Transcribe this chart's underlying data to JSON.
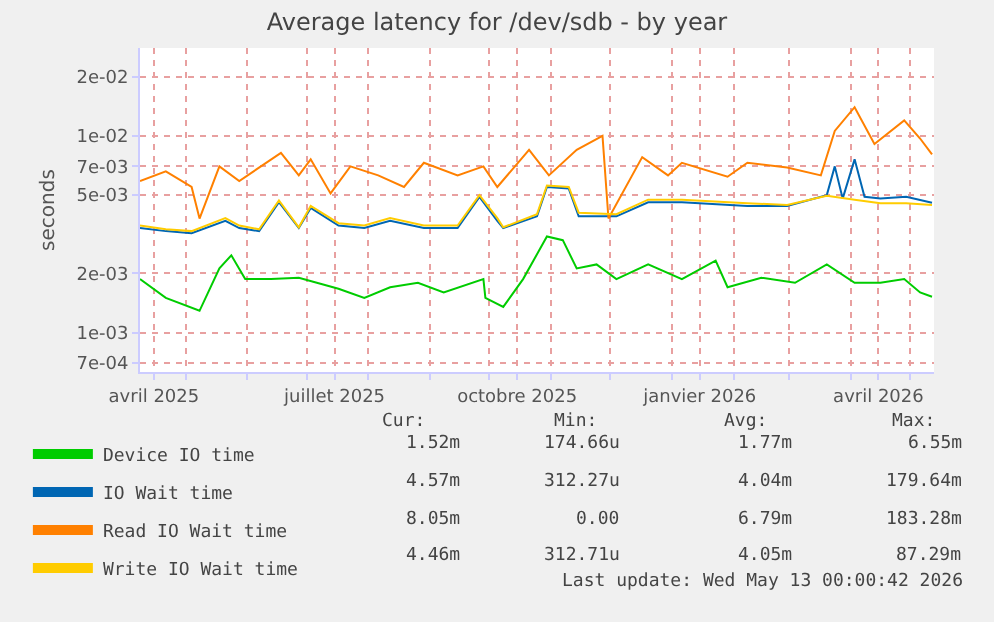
{
  "chart_data": {
    "type": "line",
    "title": "Average latency for /dev/sdb - by year",
    "ylabel": "seconds",
    "log": "y",
    "grid": true,
    "legend": "bottom left",
    "line_style": "solid",
    "marker": "none",
    "xlim": [
      "2025-04-08",
      "2026-05-13"
    ],
    "xticks": [
      {
        "value": "2025-04-15",
        "label": "avril 2025"
      },
      {
        "value": "2025-07-15",
        "label": "juillet 2025"
      },
      {
        "value": "2025-10-15",
        "label": "octobre 2025"
      },
      {
        "value": "2026-01-15",
        "label": "janvier 2026"
      },
      {
        "value": "2026-04-15",
        "label": "avril 2026"
      },
      {
        "value": "2025-05-01",
        "label": null
      },
      {
        "value": "2025-06-01",
        "label": null
      },
      {
        "value": "2025-07-01",
        "label": null
      },
      {
        "value": "2025-08-01",
        "label": null
      },
      {
        "value": "2025-09-01",
        "label": null
      },
      {
        "value": "2025-10-01",
        "label": null
      },
      {
        "value": "2025-11-01",
        "label": null
      },
      {
        "value": "2025-12-01",
        "label": null
      },
      {
        "value": "2026-01-01",
        "label": null
      },
      {
        "value": "2026-02-01",
        "label": null
      },
      {
        "value": "2026-03-01",
        "label": null
      },
      {
        "value": "2026-04-01",
        "label": null
      },
      {
        "value": "2026-05-01",
        "label": null
      }
    ],
    "ylim": [
      0.00063,
      0.028
    ],
    "yticks": [
      {
        "value": 0.0007,
        "label": "7e-04"
      },
      {
        "value": 0.001,
        "label": "1e-03"
      },
      {
        "value": 0.002,
        "label": "2e-03"
      },
      {
        "value": 0.005,
        "label": "5e-03"
      },
      {
        "value": 0.007,
        "label": "7e-03"
      },
      {
        "value": 0.01,
        "label": "1e-02"
      },
      {
        "value": 0.02,
        "label": "2e-02"
      }
    ],
    "series": [
      {
        "name": "Device IO time",
        "color": "#00cc00",
        "x": [
          "2025-04-08",
          "2025-04-21",
          "2025-05-08",
          "2025-05-18",
          "2025-05-24",
          "2025-05-31",
          "2025-06-13",
          "2025-06-27",
          "2025-07-17",
          "2025-07-30",
          "2025-08-12",
          "2025-08-26",
          "2025-09-08",
          "2025-09-28",
          "2025-09-29",
          "2025-10-08",
          "2025-10-18",
          "2025-10-30",
          "2025-11-07",
          "2025-11-14",
          "2025-11-24",
          "2025-12-04",
          "2025-12-20",
          "2026-01-06",
          "2026-01-23",
          "2026-01-29",
          "2026-02-15",
          "2026-03-04",
          "2026-03-20",
          "2026-04-03",
          "2026-04-16",
          "2026-04-28",
          "2026-05-06",
          "2026-05-12"
        ],
        "values": [
          0.00187,
          0.0015,
          0.00129,
          0.00212,
          0.00247,
          0.00187,
          0.00187,
          0.0019,
          0.00167,
          0.0015,
          0.0017,
          0.00179,
          0.0016,
          0.00187,
          0.0015,
          0.00135,
          0.00187,
          0.00308,
          0.00295,
          0.00212,
          0.00222,
          0.00187,
          0.00222,
          0.00187,
          0.00232,
          0.0017,
          0.0019,
          0.00179,
          0.00222,
          0.00179,
          0.00179,
          0.00187,
          0.0016,
          0.00152
        ]
      },
      {
        "name": "IO Wait time",
        "color": "#0066b3",
        "x": [
          "2025-04-08",
          "2025-04-21",
          "2025-05-04",
          "2025-05-21",
          "2025-05-28",
          "2025-06-07",
          "2025-06-17",
          "2025-06-27",
          "2025-07-03",
          "2025-07-17",
          "2025-07-30",
          "2025-08-12",
          "2025-08-29",
          "2025-09-15",
          "2025-09-26",
          "2025-10-05",
          "2025-10-08",
          "2025-10-25",
          "2025-10-30",
          "2025-11-10",
          "2025-11-15",
          "2025-12-04",
          "2025-12-20",
          "2026-01-06",
          "2026-02-08",
          "2026-02-28",
          "2026-03-20",
          "2026-03-24",
          "2026-03-28",
          "2026-04-03",
          "2026-04-08",
          "2026-04-16",
          "2026-04-29",
          "2026-05-12"
        ],
        "values": [
          0.0034,
          0.00328,
          0.0032,
          0.0037,
          0.0034,
          0.00328,
          0.0046,
          0.0034,
          0.0043,
          0.0035,
          0.0034,
          0.0037,
          0.0034,
          0.0034,
          0.0049,
          0.0037,
          0.0034,
          0.0039,
          0.0055,
          0.0054,
          0.0039,
          0.0039,
          0.0046,
          0.0046,
          0.0044,
          0.0044,
          0.005,
          0.007,
          0.0048,
          0.0076,
          0.0049,
          0.0048,
          0.0049,
          0.00457
        ]
      },
      {
        "name": "Read IO Wait time",
        "color": "#ff8000",
        "x": [
          "2025-04-08",
          "2025-04-21",
          "2025-05-04",
          "2025-05-08",
          "2025-05-18",
          "2025-05-28",
          "2025-06-18",
          "2025-06-27",
          "2025-07-03",
          "2025-07-13",
          "2025-07-23",
          "2025-08-06",
          "2025-08-19",
          "2025-08-29",
          "2025-09-15",
          "2025-09-28",
          "2025-10-05",
          "2025-10-21",
          "2025-10-31",
          "2025-11-14",
          "2025-11-27",
          "2025-11-30",
          "2025-12-17",
          "2025-12-30",
          "2026-01-06",
          "2026-01-29",
          "2026-02-08",
          "2026-02-28",
          "2026-03-17",
          "2026-03-24",
          "2026-04-03",
          "2026-04-13",
          "2026-04-28",
          "2026-05-06",
          "2026-05-12"
        ],
        "values": [
          0.0059,
          0.0066,
          0.0055,
          0.0038,
          0.007,
          0.0059,
          0.0082,
          0.0063,
          0.0076,
          0.0051,
          0.007,
          0.0063,
          0.0055,
          0.0073,
          0.0063,
          0.007,
          0.0055,
          0.0085,
          0.0063,
          0.0085,
          0.01,
          0.0038,
          0.0078,
          0.0063,
          0.0073,
          0.0062,
          0.0073,
          0.0069,
          0.0063,
          0.0106,
          0.014,
          0.0091,
          0.012,
          0.0097,
          0.00805
        ]
      },
      {
        "name": "Write IO Wait time",
        "color": "#ffcc00",
        "x": [
          "2025-04-08",
          "2025-04-21",
          "2025-05-04",
          "2025-05-21",
          "2025-05-28",
          "2025-06-07",
          "2025-06-17",
          "2025-06-27",
          "2025-07-03",
          "2025-07-17",
          "2025-07-30",
          "2025-08-12",
          "2025-08-29",
          "2025-09-15",
          "2025-09-26",
          "2025-10-05",
          "2025-10-08",
          "2025-10-25",
          "2025-10-30",
          "2025-11-10",
          "2025-11-15",
          "2025-12-04",
          "2025-12-20",
          "2025-12-30",
          "2026-01-06",
          "2026-02-08",
          "2026-02-28",
          "2026-03-20",
          "2026-04-03",
          "2026-04-16",
          "2026-04-29",
          "2026-05-12"
        ],
        "values": [
          0.0035,
          0.00335,
          0.00328,
          0.00382,
          0.0035,
          0.00335,
          0.0047,
          0.00343,
          0.0044,
          0.0036,
          0.0035,
          0.00382,
          0.0035,
          0.0035,
          0.005,
          0.00382,
          0.00343,
          0.004,
          0.0056,
          0.0055,
          0.00407,
          0.004,
          0.00474,
          0.00474,
          0.00474,
          0.00455,
          0.00445,
          0.00496,
          0.00474,
          0.00455,
          0.00455,
          0.00446
        ]
      }
    ],
    "annotations": [
      "Cur:",
      "Min:",
      "Avg:",
      "Max:",
      "1.52m",
      "174.66u",
      "1.77m",
      "6.55m",
      "4.57m",
      "312.27u",
      "4.04m",
      "179.64m",
      "8.05m",
      "0.00",
      "6.79m",
      "183.28m",
      "4.46m",
      "312.71u",
      "4.05m",
      "87.29m",
      "Last update: Wed May 13 00:00:42 2026"
    ]
  }
}
